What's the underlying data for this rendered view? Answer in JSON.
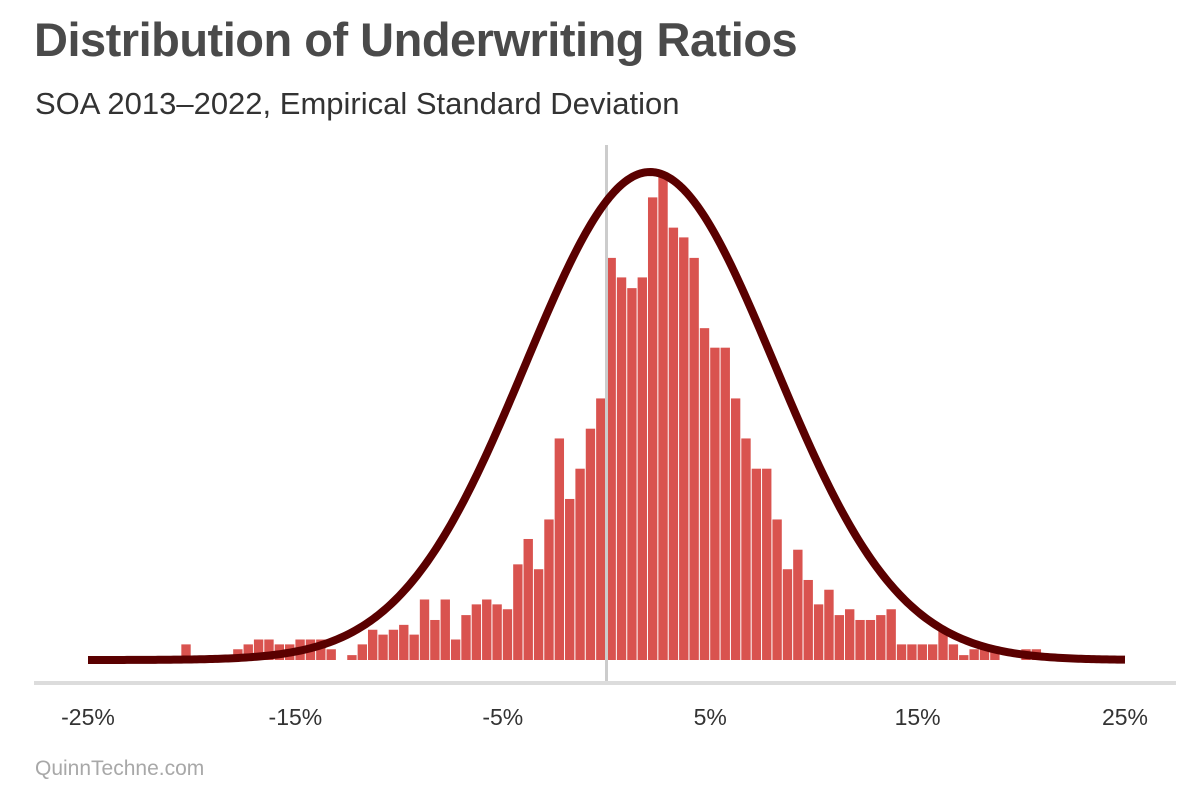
{
  "title": "Distribution of Underwriting Ratios",
  "subtitle": "SOA 2013–2022, Empirical Standard Deviation",
  "source": "QuinnTechne.com",
  "colors": {
    "bar": "#d9534f",
    "curve": "#5a0000",
    "axis": "#dcdcdc",
    "zero_line": "#cccccc",
    "title": "#4a4a4a",
    "subtitle": "#333333",
    "source": "#a8a8a8"
  },
  "chart_data": {
    "type": "bar",
    "title": "Distribution of Underwriting Ratios",
    "subtitle": "SOA 2013–2022, Empirical Standard Deviation",
    "xlabel": "",
    "ylabel": "",
    "xlim": [
      -25,
      25
    ],
    "x_ticks": [
      -25,
      -15,
      -5,
      5,
      15,
      25
    ],
    "x_tick_labels": [
      "-25%",
      "-15%",
      "-5%",
      "5%",
      "15%",
      "25%"
    ],
    "bin_width": 0.5,
    "reference_line_x": 0,
    "grid": false,
    "legend": "none",
    "bins": [
      {
        "x": -20.25,
        "count": 0.016
      },
      {
        "x": -17.75,
        "count": 0.011
      },
      {
        "x": -17.25,
        "count": 0.016
      },
      {
        "x": -16.75,
        "count": 0.021
      },
      {
        "x": -16.25,
        "count": 0.021
      },
      {
        "x": -15.75,
        "count": 0.016
      },
      {
        "x": -15.25,
        "count": 0.016
      },
      {
        "x": -14.75,
        "count": 0.021
      },
      {
        "x": -14.25,
        "count": 0.021
      },
      {
        "x": -13.75,
        "count": 0.021
      },
      {
        "x": -13.25,
        "count": 0.011
      },
      {
        "x": -12.25,
        "count": 0.005
      },
      {
        "x": -11.75,
        "count": 0.016
      },
      {
        "x": -11.25,
        "count": 0.031
      },
      {
        "x": -10.75,
        "count": 0.026
      },
      {
        "x": -10.25,
        "count": 0.031
      },
      {
        "x": -9.75,
        "count": 0.036
      },
      {
        "x": -9.25,
        "count": 0.026
      },
      {
        "x": -8.75,
        "count": 0.062
      },
      {
        "x": -8.25,
        "count": 0.041
      },
      {
        "x": -7.75,
        "count": 0.062
      },
      {
        "x": -7.25,
        "count": 0.021
      },
      {
        "x": -6.75,
        "count": 0.046
      },
      {
        "x": -6.25,
        "count": 0.057
      },
      {
        "x": -5.75,
        "count": 0.062
      },
      {
        "x": -5.25,
        "count": 0.057
      },
      {
        "x": -4.75,
        "count": 0.052
      },
      {
        "x": -4.25,
        "count": 0.098
      },
      {
        "x": -3.75,
        "count": 0.124
      },
      {
        "x": -3.25,
        "count": 0.093
      },
      {
        "x": -2.75,
        "count": 0.144
      },
      {
        "x": -2.25,
        "count": 0.227
      },
      {
        "x": -1.75,
        "count": 0.165
      },
      {
        "x": -1.25,
        "count": 0.196
      },
      {
        "x": -0.75,
        "count": 0.237
      },
      {
        "x": -0.25,
        "count": 0.268
      },
      {
        "x": 0.25,
        "count": 0.412
      },
      {
        "x": 0.75,
        "count": 0.392
      },
      {
        "x": 1.25,
        "count": 0.381
      },
      {
        "x": 1.75,
        "count": 0.392
      },
      {
        "x": 2.25,
        "count": 0.474
      },
      {
        "x": 2.75,
        "count": 0.495
      },
      {
        "x": 3.25,
        "count": 0.443
      },
      {
        "x": 3.75,
        "count": 0.433
      },
      {
        "x": 4.25,
        "count": 0.412
      },
      {
        "x": 4.75,
        "count": 0.34
      },
      {
        "x": 5.25,
        "count": 0.32
      },
      {
        "x": 5.75,
        "count": 0.32
      },
      {
        "x": 6.25,
        "count": 0.268
      },
      {
        "x": 6.75,
        "count": 0.227
      },
      {
        "x": 7.25,
        "count": 0.196
      },
      {
        "x": 7.75,
        "count": 0.196
      },
      {
        "x": 8.25,
        "count": 0.144
      },
      {
        "x": 8.75,
        "count": 0.093
      },
      {
        "x": 9.25,
        "count": 0.113
      },
      {
        "x": 9.75,
        "count": 0.082
      },
      {
        "x": 10.25,
        "count": 0.057
      },
      {
        "x": 10.75,
        "count": 0.072
      },
      {
        "x": 11.25,
        "count": 0.046
      },
      {
        "x": 11.75,
        "count": 0.052
      },
      {
        "x": 12.25,
        "count": 0.041
      },
      {
        "x": 12.75,
        "count": 0.041
      },
      {
        "x": 13.25,
        "count": 0.046
      },
      {
        "x": 13.75,
        "count": 0.052
      },
      {
        "x": 14.25,
        "count": 0.016
      },
      {
        "x": 14.75,
        "count": 0.016
      },
      {
        "x": 15.25,
        "count": 0.016
      },
      {
        "x": 15.75,
        "count": 0.016
      },
      {
        "x": 16.25,
        "count": 0.031
      },
      {
        "x": 16.75,
        "count": 0.016
      },
      {
        "x": 17.25,
        "count": 0.005
      },
      {
        "x": 17.75,
        "count": 0.011
      },
      {
        "x": 18.25,
        "count": 0.016
      },
      {
        "x": 18.75,
        "count": 0.011
      },
      {
        "x": 20.25,
        "count": 0.011
      },
      {
        "x": 20.75,
        "count": 0.011
      }
    ],
    "normal_curve": {
      "mean": 2.1,
      "sd": 6.0,
      "peak": 0.5
    }
  }
}
